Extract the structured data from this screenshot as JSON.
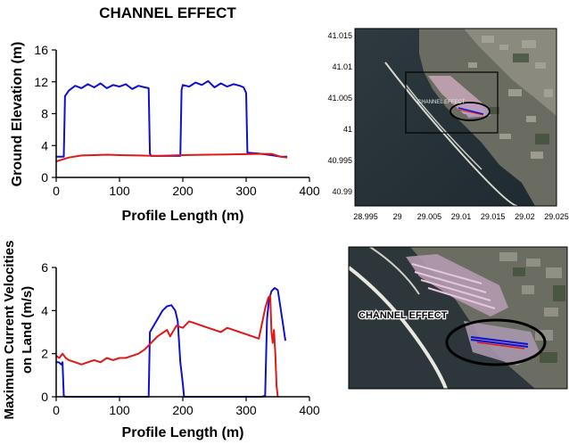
{
  "title": "CHANNEL EFFECT",
  "chart_data": [
    {
      "type": "line",
      "xlabel": "Profile Length (m)",
      "ylabel": "Ground Elevation (m)",
      "xlim": [
        0,
        400
      ],
      "ylim": [
        0,
        16
      ],
      "xticks": [
        0,
        100,
        200,
        300,
        400
      ],
      "yticks": [
        0,
        4,
        8,
        12,
        16
      ],
      "grid": false,
      "series": [
        {
          "color": "#1010d0",
          "x": [
            0,
            12,
            14,
            20,
            30,
            40,
            50,
            60,
            70,
            80,
            90,
            100,
            110,
            120,
            130,
            140,
            146,
            148,
            150,
            160,
            180,
            196,
            198,
            200,
            210,
            220,
            230,
            240,
            250,
            260,
            270,
            280,
            290,
            296,
            300,
            302,
            320,
            340,
            355,
            365
          ],
          "y": [
            2.6,
            2.6,
            10.2,
            10.9,
            11.5,
            11.2,
            11.7,
            11.3,
            11.8,
            11.2,
            11.6,
            11.4,
            11.7,
            11.1,
            11.5,
            11.3,
            11.2,
            3.0,
            2.7,
            2.7,
            2.7,
            2.7,
            11.0,
            11.6,
            11.4,
            11.9,
            11.6,
            12.1,
            11.3,
            11.8,
            11.4,
            11.7,
            11.5,
            11.3,
            10.6,
            3.1,
            3.0,
            2.8,
            2.6,
            2.6
          ]
        },
        {
          "color": "#e01818",
          "x": [
            0,
            20,
            40,
            60,
            80,
            100,
            130,
            160,
            200,
            240,
            280,
            320,
            340,
            355,
            365
          ],
          "y": [
            2.0,
            2.5,
            2.75,
            2.8,
            2.85,
            2.8,
            2.75,
            2.7,
            2.8,
            2.85,
            2.9,
            2.95,
            2.95,
            2.6,
            2.5
          ]
        }
      ]
    },
    {
      "type": "line",
      "xlabel": "Profile Length (m)",
      "ylabel": "Maximum Current Velocities on Land (m/s)",
      "ylabel_lines": [
        "Maximum Current Velocities",
        "on Land (m/s)"
      ],
      "xlim": [
        0,
        400
      ],
      "ylim": [
        0,
        6
      ],
      "xticks": [
        0,
        100,
        200,
        300,
        400
      ],
      "yticks": [
        0,
        2,
        4,
        6
      ],
      "grid": false,
      "series": [
        {
          "color": "#1010d0",
          "x": [
            0,
            4,
            8,
            10,
            12,
            14,
            60,
            100,
            140,
            146,
            148,
            152,
            160,
            168,
            175,
            182,
            188,
            192,
            196,
            200,
            202,
            250,
            300,
            325,
            330,
            333,
            336,
            340,
            345,
            350,
            354,
            358,
            362
          ],
          "y": [
            1.6,
            1.6,
            1.5,
            1.6,
            0.05,
            0.0,
            0.0,
            0.0,
            0.0,
            0.0,
            3.0,
            3.2,
            3.6,
            4.0,
            4.2,
            4.25,
            4.0,
            3.5,
            1.6,
            0.6,
            0.0,
            0.0,
            0.0,
            0.0,
            0.05,
            3.6,
            4.5,
            4.9,
            5.05,
            4.95,
            4.2,
            3.4,
            2.6
          ]
        },
        {
          "color": "#e01818",
          "x": [
            0,
            5,
            10,
            15,
            20,
            30,
            40,
            50,
            60,
            70,
            80,
            90,
            100,
            110,
            120,
            130,
            140,
            150,
            160,
            170,
            175,
            180,
            190,
            200,
            210,
            220,
            230,
            240,
            250,
            260,
            270,
            280,
            290,
            300,
            310,
            320,
            325,
            330,
            335,
            338,
            340,
            342,
            344,
            346,
            348,
            350
          ],
          "y": [
            1.9,
            1.8,
            2.0,
            1.8,
            1.7,
            1.6,
            1.5,
            1.6,
            1.7,
            1.6,
            1.8,
            1.7,
            1.8,
            1.8,
            1.9,
            2.0,
            2.2,
            2.5,
            2.8,
            3.0,
            3.1,
            2.8,
            3.3,
            3.2,
            3.5,
            3.4,
            3.3,
            3.2,
            3.1,
            3.0,
            3.2,
            3.1,
            3.0,
            2.9,
            2.8,
            2.7,
            3.4,
            4.1,
            4.6,
            4.7,
            3.0,
            2.5,
            3.1,
            2.0,
            0.5,
            0.0
          ]
        }
      ]
    }
  ],
  "map": {
    "xticks": [
      "28.995",
      "29",
      "29.005",
      "29.01",
      "29.015",
      "29.02",
      "29.025"
    ],
    "yticks": [
      "41.015",
      "41.01",
      "41.005",
      "41",
      "40.995",
      "40.99"
    ]
  },
  "inset": {
    "label": "CHANNEL EFFECT",
    "tag": "CHANNEL EFFECT"
  }
}
